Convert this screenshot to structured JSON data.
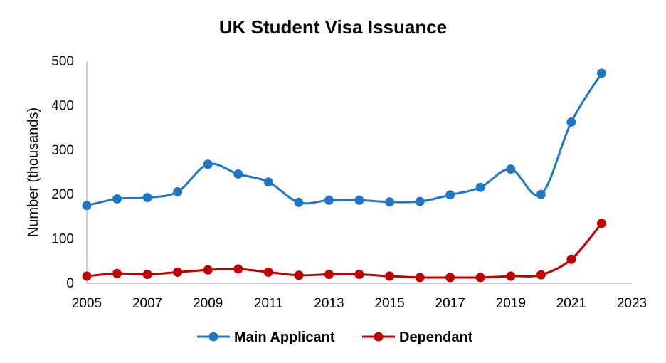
{
  "chart_data": {
    "type": "line",
    "title": "UK Student Visa Issuance",
    "xlabel": "",
    "ylabel": "Number (thousands)",
    "xlim": [
      2005,
      2023
    ],
    "ylim": [
      0,
      500
    ],
    "x_ticks": [
      "2005",
      "2007",
      "2009",
      "2011",
      "2013",
      "2015",
      "2017",
      "2019",
      "2021",
      "2023"
    ],
    "y_ticks": [
      "0",
      "100",
      "200",
      "300",
      "400",
      "500"
    ],
    "grid": false,
    "legend_position": "bottom",
    "x": [
      2005,
      2006,
      2007,
      2008,
      2009,
      2010,
      2011,
      2012,
      2013,
      2014,
      2015,
      2016,
      2017,
      2018,
      2019,
      2020,
      2021,
      2022
    ],
    "series": [
      {
        "name": "Main Applicant",
        "color": "#1f77c4",
        "values": [
          175,
          190,
          193,
          206,
          268,
          246,
          228,
          182,
          187,
          187,
          183,
          184,
          199,
          216,
          257,
          200,
          363,
          473
        ]
      },
      {
        "name": "Dependant",
        "color": "#c00000",
        "values": [
          16,
          22,
          20,
          25,
          30,
          32,
          25,
          18,
          20,
          20,
          16,
          13,
          13,
          13,
          16,
          19,
          54,
          135
        ]
      }
    ]
  }
}
